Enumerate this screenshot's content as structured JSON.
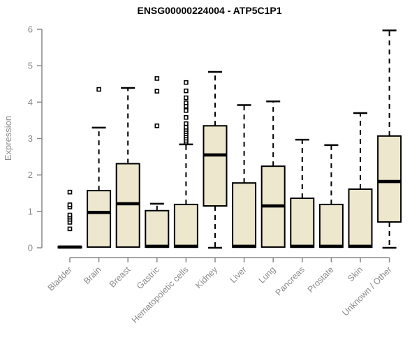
{
  "chart_data": {
    "type": "box",
    "title": "ENSG00000224004 - ATP5C1P1",
    "ylabel": "Expression",
    "xlabel": "",
    "ylim": [
      0,
      6
    ],
    "yticks": [
      0,
      1,
      2,
      3,
      4,
      5,
      6
    ],
    "grid": false,
    "legend": "none",
    "categories": [
      "Bladder",
      "Brain",
      "Breast",
      "Gastric",
      "Hematopoietic cells",
      "Kidney",
      "Liver",
      "Lung",
      "Pancreas",
      "Prostate",
      "Skin",
      "Unknown / Other"
    ],
    "boxes": [
      {
        "whisker_low": 0,
        "q1": 0,
        "median": 0.02,
        "q3": 0.04,
        "whisker_high": 0.04,
        "outliers": [
          0.52,
          0.7,
          0.78,
          0.84,
          0.9,
          1.12,
          1.18,
          1.53
        ]
      },
      {
        "whisker_low": 0.02,
        "q1": 0.02,
        "median": 0.97,
        "q3": 1.57,
        "whisker_high": 3.3,
        "outliers": [
          4.35
        ]
      },
      {
        "whisker_low": 0.02,
        "q1": 0.02,
        "median": 1.21,
        "q3": 2.31,
        "whisker_high": 4.39,
        "outliers": []
      },
      {
        "whisker_low": 0.02,
        "q1": 0.02,
        "median": 0.04,
        "q3": 1.02,
        "whisker_high": 1.21,
        "outliers": [
          3.35,
          4.3,
          4.65
        ]
      },
      {
        "whisker_low": 0.02,
        "q1": 0.02,
        "median": 0.04,
        "q3": 1.19,
        "whisker_high": 2.84,
        "outliers": [
          2.9,
          2.95,
          3.01,
          3.07,
          3.13,
          3.19,
          3.25,
          3.31,
          3.41,
          3.58,
          3.77,
          3.89,
          3.98,
          4.12,
          4.31,
          4.54
        ]
      },
      {
        "whisker_low": 0,
        "q1": 1.15,
        "median": 2.55,
        "q3": 3.35,
        "whisker_high": 4.83,
        "outliers": []
      },
      {
        "whisker_low": 0.02,
        "q1": 0.02,
        "median": 0.04,
        "q3": 1.78,
        "whisker_high": 3.92,
        "outliers": []
      },
      {
        "whisker_low": 0.02,
        "q1": 0.02,
        "median": 1.15,
        "q3": 2.24,
        "whisker_high": 4.02,
        "outliers": []
      },
      {
        "whisker_low": 0.02,
        "q1": 0.02,
        "median": 0.04,
        "q3": 1.36,
        "whisker_high": 2.97,
        "outliers": []
      },
      {
        "whisker_low": 0.02,
        "q1": 0.02,
        "median": 0.04,
        "q3": 1.19,
        "whisker_high": 2.82,
        "outliers": []
      },
      {
        "whisker_low": 0.02,
        "q1": 0.02,
        "median": 0.04,
        "q3": 1.61,
        "whisker_high": 3.7,
        "outliers": []
      },
      {
        "whisker_low": 0,
        "q1": 0.71,
        "median": 1.82,
        "q3": 3.07,
        "whisker_high": 5.97,
        "outliers": []
      }
    ],
    "colors": {
      "box_fill": "#ece7cd",
      "box_stroke": "#000000",
      "median": "#000000",
      "whisker": "#000000",
      "outlier_stroke": "#000000",
      "axis": "#898989",
      "tick_label": "#8a8a8a",
      "title": "#000000",
      "background": "#ffffff"
    }
  }
}
